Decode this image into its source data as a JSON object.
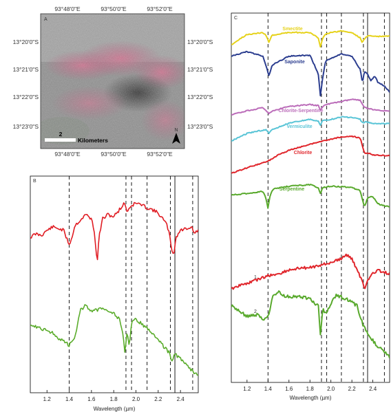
{
  "panel_a": {
    "label": "A",
    "top_lon": [
      "93°48'0\"E",
      "93°50'0\"E",
      "93°52'0\"E"
    ],
    "bottom_lon": [
      "93°48'0\"E",
      "93°50'0\"E",
      "93°52'0\"E"
    ],
    "left_lat": [
      "13°20'0\"S",
      "13°21'0\"S",
      "13°22'0\"S",
      "13°23'0\"S"
    ],
    "right_lat": [
      "13°20'0\"S",
      "13°21'0\"S",
      "13°22'0\"S",
      "13°23'0\"S"
    ],
    "scale_value": "2",
    "scale_unit": "Kilometers",
    "north_label": "N",
    "colors": {
      "base": "#8f8f8f",
      "pink": "#c06a86",
      "dark": "#3c3c3c"
    }
  },
  "chart_data": [
    {
      "panel": "B",
      "type": "line",
      "xlabel": "Wavelength (µm)",
      "xlim": [
        1.05,
        2.56
      ],
      "xticks": [
        "1.2",
        "1.4",
        "1.6",
        "1.8",
        "2.0",
        "2.2",
        "2.4"
      ],
      "dashed_lines": [
        1.4,
        1.91,
        1.96,
        2.1,
        2.31,
        2.51
      ],
      "solid_lines": [
        2.35
      ],
      "series": [
        {
          "color": "#e01b22",
          "x": [
            1.05,
            1.1,
            1.15,
            1.2,
            1.25,
            1.3,
            1.35,
            1.38,
            1.4,
            1.42,
            1.45,
            1.5,
            1.55,
            1.6,
            1.63,
            1.65,
            1.67,
            1.7,
            1.75,
            1.8,
            1.85,
            1.9,
            1.92,
            1.95,
            2.0,
            2.05,
            2.1,
            2.15,
            2.2,
            2.25,
            2.28,
            2.3,
            2.32,
            2.34,
            2.36,
            2.4,
            2.45,
            2.5,
            2.53,
            2.56
          ],
          "y": [
            0.45,
            0.5,
            0.48,
            0.55,
            0.6,
            0.58,
            0.55,
            0.42,
            0.35,
            0.42,
            0.62,
            0.7,
            0.78,
            0.72,
            0.5,
            0.05,
            0.48,
            0.72,
            0.78,
            0.75,
            0.85,
            0.95,
            0.82,
            0.9,
            0.95,
            0.92,
            0.88,
            0.85,
            0.8,
            0.7,
            0.62,
            0.5,
            0.28,
            0.2,
            0.45,
            0.55,
            0.58,
            0.6,
            0.5,
            0.56
          ]
        },
        {
          "color": "#5aac2b",
          "x": [
            1.05,
            1.1,
            1.15,
            1.2,
            1.25,
            1.3,
            1.35,
            1.4,
            1.45,
            1.5,
            1.55,
            1.6,
            1.65,
            1.7,
            1.75,
            1.8,
            1.85,
            1.88,
            1.9,
            1.92,
            1.94,
            1.96,
            2.0,
            2.05,
            2.1,
            2.15,
            2.2,
            2.25,
            2.3,
            2.32,
            2.35,
            2.4,
            2.45,
            2.5,
            2.53,
            2.56
          ],
          "y": [
            0.55,
            0.52,
            0.5,
            0.48,
            0.45,
            0.4,
            0.36,
            0.32,
            0.4,
            0.7,
            0.75,
            0.68,
            0.7,
            0.72,
            0.7,
            0.66,
            0.6,
            0.45,
            0.25,
            0.45,
            0.3,
            0.55,
            0.6,
            0.55,
            0.5,
            0.45,
            0.38,
            0.3,
            0.24,
            0.15,
            0.22,
            0.18,
            0.12,
            0.05,
            0.02,
            0.0
          ]
        }
      ]
    },
    {
      "panel": "C",
      "type": "line",
      "xlabel": "Wavelength (µm)",
      "xlim": [
        1.05,
        2.56
      ],
      "xticks": [
        "1.2",
        "1.4",
        "1.6",
        "1.8",
        "2.0",
        "2.2",
        "2.4"
      ],
      "dashed_lines": [
        1.4,
        1.91,
        1.96,
        2.1,
        2.31,
        2.51
      ],
      "solid_lines": [
        2.35
      ],
      "series": [
        {
          "name": "Smectite",
          "color": "#e6d21a",
          "x": [
            1.05,
            1.2,
            1.35,
            1.38,
            1.41,
            1.44,
            1.6,
            1.8,
            1.88,
            1.9,
            1.92,
            1.95,
            2.1,
            2.2,
            2.28,
            2.3,
            2.32,
            2.35,
            2.45,
            2.56
          ],
          "y": [
            0.2,
            0.8,
            0.9,
            0.75,
            0.35,
            0.75,
            0.92,
            0.9,
            0.6,
            0.05,
            0.55,
            0.85,
            1.0,
            0.9,
            0.6,
            0.3,
            0.55,
            0.72,
            0.68,
            0.7
          ]
        },
        {
          "name": "Saponite",
          "color": "#2b3d8f",
          "x": [
            1.05,
            1.2,
            1.35,
            1.38,
            1.41,
            1.44,
            1.6,
            1.8,
            1.88,
            1.9,
            1.92,
            1.95,
            2.1,
            2.2,
            2.28,
            2.3,
            2.32,
            2.35,
            2.38,
            2.42,
            2.45,
            2.5,
            2.56
          ],
          "y": [
            0.9,
            1.0,
            0.9,
            0.7,
            0.45,
            0.7,
            0.9,
            0.92,
            0.5,
            0.0,
            0.4,
            0.8,
            0.95,
            0.9,
            0.6,
            0.3,
            0.55,
            0.5,
            0.35,
            0.45,
            0.3,
            0.25,
            0.1
          ]
        },
        {
          "name": "Chlorite-Serpentine",
          "color": "#bb6cb9",
          "x": [
            1.05,
            1.2,
            1.35,
            1.38,
            1.41,
            1.44,
            1.6,
            1.8,
            1.88,
            1.9,
            1.92,
            1.95,
            2.1,
            2.2,
            2.28,
            2.3,
            2.33,
            2.4,
            2.5,
            2.56
          ],
          "y": [
            0.1,
            0.3,
            0.45,
            0.3,
            0.15,
            0.3,
            0.5,
            0.6,
            0.55,
            0.35,
            0.5,
            0.6,
            0.75,
            0.85,
            0.8,
            0.6,
            0.45,
            0.35,
            0.3,
            0.3
          ]
        },
        {
          "name": "Vermiculite",
          "color": "#58c4d6",
          "x": [
            1.05,
            1.2,
            1.38,
            1.41,
            1.44,
            1.6,
            1.8,
            1.88,
            1.9,
            1.92,
            2.0,
            2.1,
            2.2,
            2.28,
            2.3,
            2.33,
            2.4,
            2.5,
            2.56
          ],
          "y": [
            0.0,
            0.3,
            0.45,
            0.3,
            0.45,
            0.7,
            0.85,
            0.78,
            0.6,
            0.8,
            0.85,
            0.95,
            0.92,
            0.85,
            0.7,
            0.75,
            0.7,
            0.68,
            0.68
          ]
        },
        {
          "name": "Chlorite",
          "color": "#e0252b",
          "x": [
            1.05,
            1.2,
            1.35,
            1.4,
            1.5,
            1.6,
            1.7,
            1.8,
            1.9,
            2.0,
            2.1,
            2.2,
            2.28,
            2.3,
            2.32,
            2.35,
            2.4,
            2.5,
            2.56
          ],
          "y": [
            0.0,
            0.15,
            0.28,
            0.33,
            0.5,
            0.62,
            0.7,
            0.78,
            0.85,
            0.92,
            0.98,
            1.0,
            0.95,
            0.75,
            0.55,
            0.55,
            0.5,
            0.48,
            0.48
          ]
        },
        {
          "name": "Serpentine",
          "color": "#58a92c",
          "x": [
            1.05,
            1.2,
            1.35,
            1.38,
            1.4,
            1.42,
            1.45,
            1.6,
            1.8,
            1.88,
            1.9,
            1.92,
            2.0,
            2.1,
            2.2,
            2.28,
            2.3,
            2.32,
            2.35,
            2.4,
            2.45,
            2.5,
            2.56
          ],
          "y": [
            0.5,
            0.55,
            0.62,
            0.4,
            0.05,
            0.5,
            0.7,
            0.8,
            0.85,
            0.75,
            0.55,
            0.75,
            0.8,
            0.78,
            0.75,
            0.65,
            0.35,
            0.1,
            0.4,
            0.45,
            0.2,
            0.15,
            0.1
          ]
        },
        {
          "name": "1",
          "color": "#e0252b",
          "x": [
            1.05,
            1.1,
            1.2,
            1.3,
            1.4,
            1.5,
            1.6,
            1.7,
            1.8,
            1.9,
            2.0,
            2.1,
            2.15,
            2.2,
            2.25,
            2.3,
            2.32,
            2.35,
            2.4,
            2.45,
            2.5,
            2.56
          ],
          "y": [
            0.05,
            0.12,
            0.2,
            0.3,
            0.4,
            0.45,
            0.55,
            0.6,
            0.62,
            0.68,
            0.75,
            0.85,
            0.95,
            0.85,
            0.55,
            0.25,
            0.05,
            0.3,
            0.45,
            0.55,
            0.5,
            0.45
          ]
        },
        {
          "name": "2",
          "color": "#58a92c",
          "x": [
            1.05,
            1.1,
            1.2,
            1.3,
            1.35,
            1.4,
            1.45,
            1.5,
            1.55,
            1.6,
            1.7,
            1.8,
            1.88,
            1.9,
            1.92,
            1.96,
            2.0,
            2.05,
            2.1,
            2.15,
            2.2,
            2.25,
            2.3,
            2.35,
            2.4,
            2.45,
            2.5,
            2.56
          ],
          "y": [
            0.75,
            0.7,
            0.6,
            0.62,
            0.55,
            0.6,
            0.9,
            0.95,
            0.9,
            0.88,
            0.9,
            0.85,
            0.75,
            0.3,
            0.7,
            0.65,
            0.8,
            0.9,
            0.88,
            0.85,
            0.8,
            0.75,
            0.5,
            0.35,
            0.25,
            0.15,
            0.1,
            0.0
          ]
        }
      ]
    }
  ]
}
